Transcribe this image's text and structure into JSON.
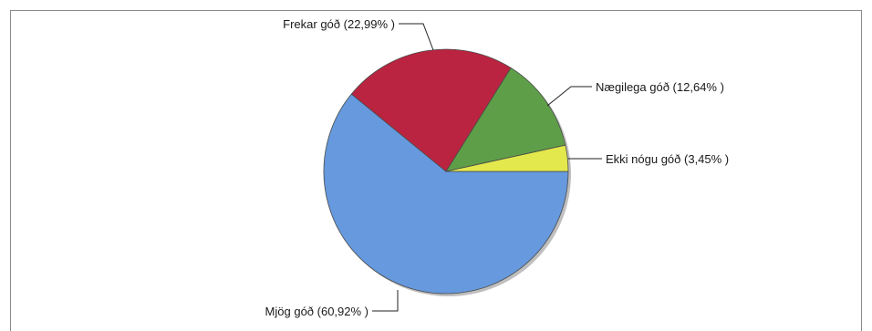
{
  "chart_data": {
    "type": "pie",
    "title": "",
    "slices": [
      {
        "label": "Mjög góð (60,92% )",
        "category": "Mjög góð",
        "value": 60.92,
        "color": "#6699dd"
      },
      {
        "label": "Frekar góð (22,99% )",
        "category": "Frekar góð",
        "value": 22.99,
        "color": "#bb2440"
      },
      {
        "label": "Nægilega góð (12,64% )",
        "category": "Nægilega góð",
        "value": 12.64,
        "color": "#5e9e48"
      },
      {
        "label": "Ekki nógu góð (3,45% )",
        "category": "Ekki nógu góð",
        "value": 3.45,
        "color": "#e3e84c"
      }
    ],
    "start_angle_deg": 0,
    "direction": "counterclockwise",
    "legend": "none",
    "label_placement": "outside-with-leader-lines"
  }
}
